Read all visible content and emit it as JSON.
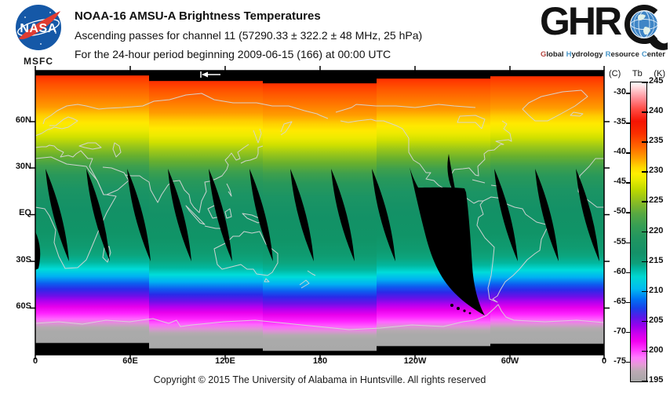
{
  "header": {
    "nasa": {
      "insignia_text": "NASA",
      "center": "MSFC"
    },
    "title": "NOAA-16 AMSU-A Brightness Temperatures",
    "subtitle_channel": "Ascending passes for channel 11 (57290.33 ± 322.2 ± 48 MHz, 25 hPa)",
    "subtitle_period": "For the 24-hour period beginning 2009-06-15 (166) at 00:00 UTC",
    "ghrc": {
      "letters": "GHR",
      "tagline": [
        {
          "initial": "G",
          "rest": "lobal",
          "color": "#b3443e"
        },
        {
          "initial": "H",
          "rest": "ydrology",
          "color": "#4a97c9"
        },
        {
          "initial": "R",
          "rest": "esource",
          "color": "#4a97c9"
        },
        {
          "initial": "C",
          "rest": "enter",
          "color": "#4a97c9"
        }
      ]
    }
  },
  "map": {
    "lat_labels": [
      "60N",
      "30N",
      "EQ",
      "30S",
      "60S"
    ],
    "lon_labels": [
      "0",
      "60E",
      "120E",
      "180",
      "120W",
      "60W",
      "0"
    ]
  },
  "colorbar": {
    "header_left": "(C)",
    "header_mid": "Tb",
    "header_right": "(K)",
    "celsius_ticks": [
      -30,
      -35,
      -40,
      -45,
      -50,
      -55,
      -60,
      -65,
      -70,
      -75
    ],
    "kelvin_ticks": [
      245,
      240,
      235,
      230,
      225,
      220,
      215,
      210,
      205,
      200,
      195
    ],
    "kelvin_range": [
      195,
      245
    ],
    "palette_key_colors": {
      "245K": "#ffffff",
      "240K": "#ff342a",
      "235K": "#ff4400",
      "230K": "#ffe800",
      "225K": "#78b430",
      "220K": "#1d9562",
      "215K": "#03b49c",
      "210K": "#0048f0",
      "205K": "#b800ee",
      "200K": "#ff30ff",
      "195K": "#a2a2a2",
      "no_data": "#000000"
    }
  },
  "footer": {
    "copyright": "Copyright © 2015 The University of Alabama in Huntsville.  All rights reserved"
  }
}
